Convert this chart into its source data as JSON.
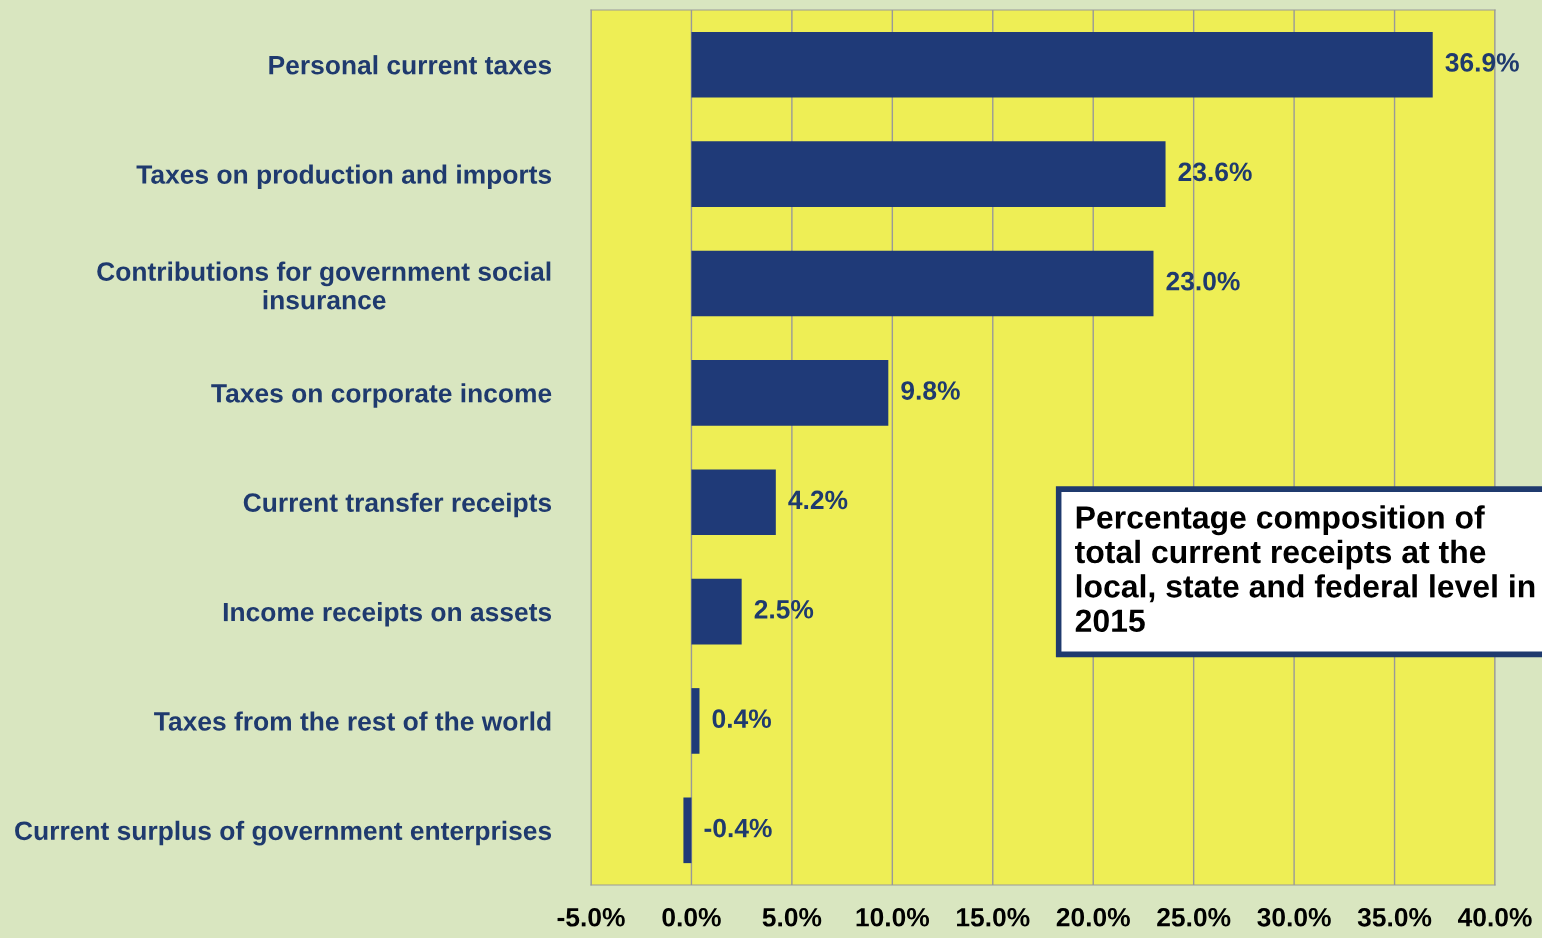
{
  "chart_data": {
    "type": "bar",
    "orientation": "horizontal",
    "title": "Percentage composition of total current receipts at the local, state and federal level in 2015",
    "categories": [
      "Personal current taxes",
      "Taxes on production and imports",
      "Contributions for government social\ninsurance",
      "Taxes on corporate income",
      "Current transfer receipts",
      "Income receipts on assets",
      "Taxes from the rest of the world",
      "Current surplus of government enterprises"
    ],
    "values": [
      36.9,
      23.6,
      23.0,
      9.8,
      4.2,
      2.5,
      0.4,
      -0.4
    ],
    "value_labels": [
      "36.9%",
      "23.6%",
      "23.0%",
      "9.8%",
      "4.2%",
      "2.5%",
      "0.4%",
      "-0.4%"
    ],
    "color": "#1f3a78",
    "xlim": [
      -5,
      40
    ],
    "xticks": [
      {
        "value": -5,
        "label": "-5.0%"
      },
      {
        "value": 0,
        "label": "0.0%"
      },
      {
        "value": 5,
        "label": "5.0%"
      },
      {
        "value": 10,
        "label": "10.0%"
      },
      {
        "value": 15,
        "label": "15.0%"
      },
      {
        "value": 20,
        "label": "20.0%"
      },
      {
        "value": 25,
        "label": "25.0%"
      },
      {
        "value": 30,
        "label": "30.0%"
      },
      {
        "value": 35,
        "label": "35.0%"
      },
      {
        "value": 40,
        "label": "40.0%"
      }
    ],
    "grid": "x",
    "legend": false
  }
}
